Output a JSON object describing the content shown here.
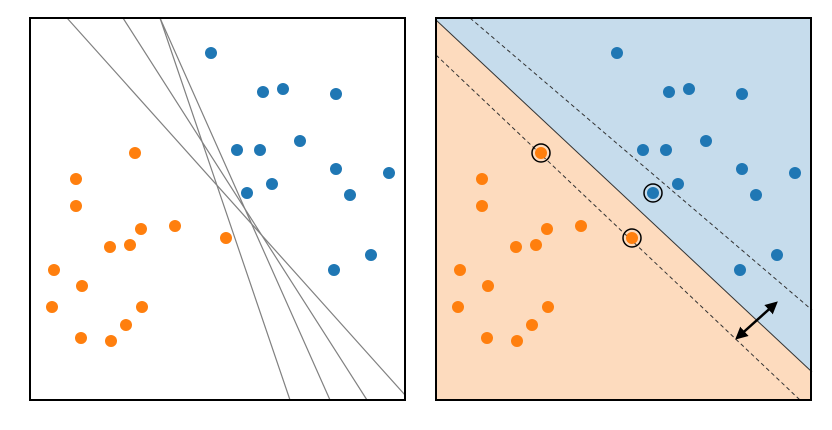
{
  "chart_data": [
    {
      "type": "scatter",
      "xlim": [
        0,
        375
      ],
      "ylim": [
        0,
        382
      ],
      "series": [
        {
          "color": "#1f77b4",
          "x": [
            181,
            233,
            253,
            306,
            207,
            230,
            270,
            306,
            320,
            359,
            217,
            242,
            304,
            341
          ],
          "y": [
            347,
            308,
            311,
            306,
            250,
            250,
            259,
            231,
            205,
            227,
            207,
            216,
            130,
            145
          ]
        },
        {
          "color": "#ff7f0e",
          "x": [
            105,
            46,
            46,
            111,
            145,
            196,
            80,
            100,
            24,
            52,
            22,
            112,
            96,
            51,
            81
          ],
          "y": [
            247,
            221,
            194,
            171,
            174,
            162,
            153,
            155,
            130,
            114,
            93,
            93,
            75,
            62,
            59
          ]
        }
      ],
      "lines": [
        {
          "color": "#808080",
          "x": [
            37,
            375
          ],
          "y": [
            382,
            5
          ]
        },
        {
          "color": "#808080",
          "x": [
            93,
            337
          ],
          "y": [
            382,
            0
          ]
        },
        {
          "color": "#808080",
          "x": [
            130,
            300
          ],
          "y": [
            382,
            0
          ]
        },
        {
          "color": "#808080",
          "x": [
            130,
            260
          ],
          "y": [
            382,
            0
          ]
        }
      ]
    },
    {
      "type": "svm",
      "xlim": [
        0,
        375
      ],
      "ylim": [
        0,
        382
      ],
      "series": [
        {
          "color": "#1f77b4",
          "region_color": "#c6dcec",
          "x": [
            181,
            233,
            253,
            306,
            207,
            230,
            270,
            306,
            320,
            359,
            217,
            242,
            304,
            341
          ],
          "y": [
            347,
            308,
            311,
            306,
            250,
            250,
            259,
            231,
            205,
            227,
            207,
            216,
            130,
            145
          ]
        },
        {
          "color": "#ff7f0e",
          "region_color": "#fddbbe",
          "x": [
            105,
            46,
            46,
            111,
            145,
            196,
            80,
            100,
            24,
            52,
            22,
            112,
            96,
            51,
            81
          ],
          "y": [
            247,
            221,
            194,
            171,
            174,
            162,
            153,
            155,
            130,
            114,
            93,
            93,
            75,
            62,
            59
          ]
        }
      ],
      "boundary": {
        "x": [
          0,
          376
        ],
        "y": [
          380,
          28
        ]
      },
      "margins": [
        {
          "x": [
            34,
            376
          ],
          "y": [
            382,
            90
          ]
        },
        {
          "x": [
            0,
            364
          ],
          "y": [
            345,
            0
          ]
        }
      ],
      "support_vectors": {
        "x": [
          105,
          217,
          196
        ],
        "y": [
          247,
          207,
          162
        ]
      },
      "margin_arrow": {
        "x": [
          301,
          340
        ],
        "y": [
          62,
          97
        ]
      }
    }
  ]
}
